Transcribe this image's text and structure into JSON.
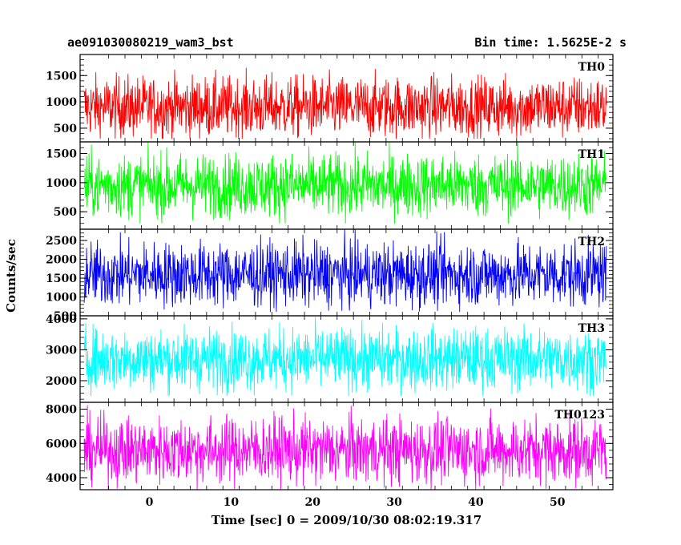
{
  "header": {
    "left_title": "ae091030080219_wam3_bst",
    "right_title": "Bin time: 1.5625E-2 s"
  },
  "chart_data": {
    "type": "line",
    "xlabel": "Time [sec] 0 = 2009/10/30 08:02:19.317",
    "ylabel": "Counts/sec",
    "xlim": [
      -8.5,
      56.8
    ],
    "x_range": [
      -8,
      56
    ],
    "bin_time_s": 0.015625,
    "x_ticks": [
      0,
      10,
      20,
      30,
      40,
      50
    ],
    "x_tick_labels": [
      "0",
      "10",
      "20",
      "30",
      "40",
      "50"
    ],
    "grid": false,
    "panels": [
      {
        "name": "TH0",
        "color": "#ff0000",
        "ylim": [
          240,
          1900
        ],
        "yticks": [
          500,
          1000,
          1500
        ],
        "ytick_labels": [
          "500",
          "1000",
          "1500"
        ],
        "mean": 900,
        "min": 300,
        "max": 1800
      },
      {
        "name": "TH1",
        "color": "#00ff00",
        "ylim": [
          200,
          1700
        ],
        "yticks": [
          500,
          1000,
          1500
        ],
        "ytick_labels": [
          "500",
          "1000",
          "1500"
        ],
        "mean": 950,
        "min": 300,
        "max": 1700
      },
      {
        "name": "TH2",
        "color": "#0000ff",
        "ylim": [
          500,
          2800
        ],
        "yticks": [
          500,
          1000,
          1500,
          2000,
          2500
        ],
        "ytick_labels": [
          "500",
          "1000",
          "1500",
          "2000",
          "2500"
        ],
        "mean": 1600,
        "min": 600,
        "max": 2800
      },
      {
        "name": "TH3",
        "color": "#00ffff",
        "ylim": [
          1300,
          4100
        ],
        "yticks": [
          2000,
          3000,
          4000
        ],
        "ytick_labels": [
          "2000",
          "3000",
          "4000"
        ],
        "mean": 2700,
        "min": 1500,
        "max": 4100
      },
      {
        "name": "TH0123",
        "color": "#ff00ff",
        "ylim": [
          3300,
          8400
        ],
        "yticks": [
          4000,
          6000,
          8000
        ],
        "ytick_labels": [
          "4000",
          "6000",
          "8000"
        ],
        "mean": 5600,
        "min": 3300,
        "max": 8300
      }
    ]
  }
}
